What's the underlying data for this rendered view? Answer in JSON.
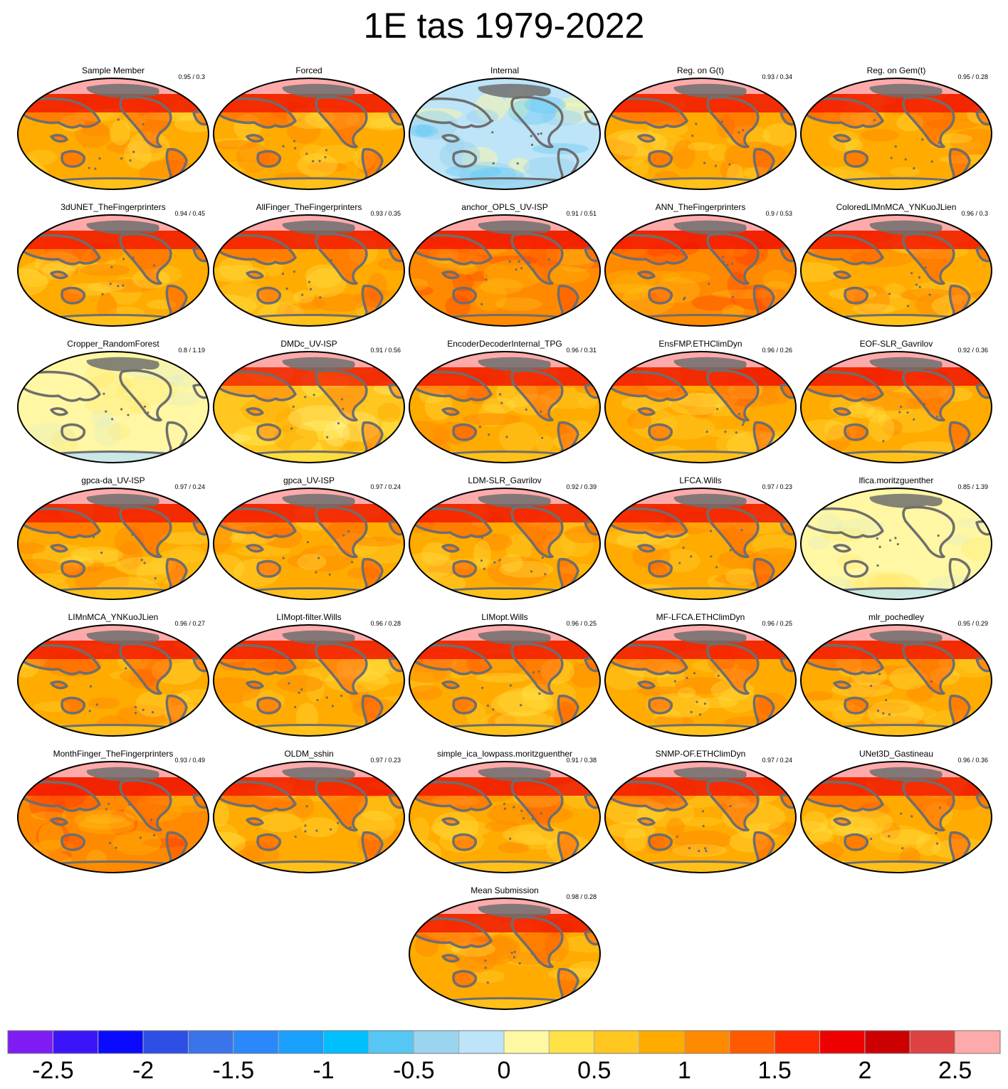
{
  "title": "1E tas 1979-2022",
  "colors": {
    "coastline": "#6e6e6e",
    "outline": "#000000"
  },
  "panels": [
    {
      "name": "Sample Member",
      "score": "0.95 / 0.3",
      "style": "forced"
    },
    {
      "name": "Forced",
      "score": "",
      "style": "forced"
    },
    {
      "name": "Internal",
      "score": "",
      "style": "internal"
    },
    {
      "name": "Reg. on G(t)",
      "score": "0.93 / 0.34",
      "style": "forced"
    },
    {
      "name": "Reg. on Gem(t)",
      "score": "0.95 / 0.28",
      "style": "forced"
    },
    {
      "name": "3dUNET_TheFingerprinters",
      "score": "0.94 / 0.45",
      "style": "forced"
    },
    {
      "name": "AllFinger_TheFingerprinters",
      "score": "0.93 / 0.35",
      "style": "forced"
    },
    {
      "name": "anchor_OPLS_UV-ISP",
      "score": "0.91 / 0.51",
      "style": "warm"
    },
    {
      "name": "ANN_TheFingerprinters",
      "score": "0.9 / 0.53",
      "style": "warm"
    },
    {
      "name": "ColoredLIMnMCA_YNKuoJLien",
      "score": "0.96 / 0.3",
      "style": "forced"
    },
    {
      "name": "Cropper_RandomForest",
      "score": "0.8 / 1.19",
      "style": "pale"
    },
    {
      "name": "DMDc_UV-ISP",
      "score": "0.91 / 0.56",
      "style": "mild"
    },
    {
      "name": "EncoderDecoderInternal_TPG",
      "score": "0.96 / 0.31",
      "style": "forced"
    },
    {
      "name": "EnsFMP.ETHClimDyn",
      "score": "0.96 / 0.26",
      "style": "forced"
    },
    {
      "name": "EOF-SLR_Gavrilov",
      "score": "0.92 / 0.36",
      "style": "forced"
    },
    {
      "name": "gpca-da_UV-ISP",
      "score": "0.97 / 0.24",
      "style": "forced"
    },
    {
      "name": "gpca_UV-ISP",
      "score": "0.97 / 0.24",
      "style": "forced"
    },
    {
      "name": "LDM-SLR_Gavrilov",
      "score": "0.92 / 0.39",
      "style": "forced"
    },
    {
      "name": "LFCA.Wills",
      "score": "0.97 / 0.23",
      "style": "forced"
    },
    {
      "name": "lfica.moritzguenther",
      "score": "0.85 / 1.39",
      "style": "pale"
    },
    {
      "name": "LIMnMCA_YNKuoJLien",
      "score": "0.96 / 0.27",
      "style": "forced"
    },
    {
      "name": "LIMopt-filter.Wills",
      "score": "0.96 / 0.28",
      "style": "forced"
    },
    {
      "name": "LIMopt.Wills",
      "score": "0.96 / 0.25",
      "style": "forced"
    },
    {
      "name": "MF-LFCA.ETHClimDyn",
      "score": "0.96 / 0.25",
      "style": "forced"
    },
    {
      "name": "mlr_pochedley",
      "score": "0.95 / 0.29",
      "style": "forced"
    },
    {
      "name": "MonthFinger_TheFingerprinters",
      "score": "0.93 / 0.49",
      "style": "warm"
    },
    {
      "name": "OLDM_sshin",
      "score": "0.97 / 0.23",
      "style": "forced"
    },
    {
      "name": "simple_ica_lowpass.moritzguenther",
      "score": "0.91 / 0.38",
      "style": "forced"
    },
    {
      "name": "SNMP-OF.ETHClimDyn",
      "score": "0.97 / 0.24",
      "style": "forced"
    },
    {
      "name": "UNet3D_Gastineau",
      "score": "0.96 / 0.36",
      "style": "forced"
    },
    {
      "name": "Mean Submission",
      "score": "0.98 / 0.28",
      "style": "forced"
    }
  ],
  "colorbar": {
    "colors": [
      "#7f1cf4",
      "#3c14fa",
      "#0a0aff",
      "#2e4fe6",
      "#3b74ea",
      "#2a88fa",
      "#19a0ff",
      "#00bfff",
      "#56c6f5",
      "#9bd4ef",
      "#bde4f7",
      "#fff7a3",
      "#ffe246",
      "#ffc71f",
      "#ffab00",
      "#ff8a00",
      "#ff5a00",
      "#ff2a00",
      "#ee0000",
      "#cc0000",
      "#dd4242",
      "#ffaaaa"
    ],
    "labels": [
      "-2.5",
      "-2",
      "-1.5",
      "-1",
      "-0.5",
      "0",
      "0.5",
      "1",
      "1.5",
      "2",
      "2.5"
    ]
  }
}
